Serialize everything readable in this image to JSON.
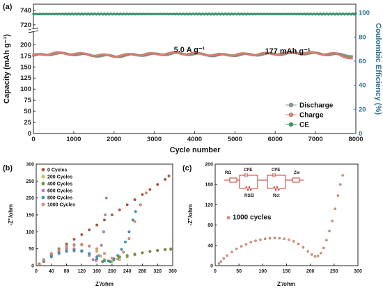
{
  "chart_data": [
    {
      "id": "a",
      "panel_label": "(a)",
      "type": "scatter",
      "xlabel": "Cycle number",
      "ylabel": "Capacity (mAh g⁻¹)",
      "y2label": "Coulombic Efficiency (%)",
      "xlim": [
        0,
        8000
      ],
      "xticks": [
        0,
        1000,
        2000,
        3000,
        4000,
        5000,
        6000,
        7000,
        8000
      ],
      "y_lower_ticks": [
        0,
        25,
        50,
        75,
        100,
        125,
        150,
        175,
        200
      ],
      "y_upper_ticks": [
        720,
        740
      ],
      "y_break": [
        205,
        715
      ],
      "y2lim": [
        0,
        105
      ],
      "y2ticks": [
        0,
        20,
        40,
        60,
        80,
        100
      ],
      "annotations": [
        "5.0 A g⁻¹",
        "177 mAh g⁻¹"
      ],
      "legend_position": "lower-right",
      "series": [
        {
          "name": "Discharge",
          "color": "#8a9a8a",
          "axis": "left",
          "x": [
            0,
            500,
            1000,
            1500,
            2000,
            2500,
            3000,
            3500,
            4000,
            4500,
            5000,
            5500,
            6000,
            6500,
            7000,
            7500,
            7900
          ],
          "y": [
            175,
            180,
            179,
            176,
            174,
            177,
            178,
            180,
            179,
            176,
            177,
            178,
            179,
            181,
            180,
            178,
            176
          ]
        },
        {
          "name": "Charge",
          "color": "#e8826e",
          "axis": "left",
          "x": [
            0,
            500,
            1000,
            1500,
            2000,
            2500,
            3000,
            3500,
            4000,
            4500,
            5000,
            5500,
            6000,
            6500,
            7000,
            7500,
            7900
          ],
          "y": [
            176,
            181,
            180,
            177,
            175,
            178,
            179,
            181,
            180,
            177,
            178,
            179,
            180,
            182,
            181,
            179,
            170
          ]
        },
        {
          "name": "CE",
          "color": "#2e9a6a",
          "axis": "right",
          "x": [
            0,
            1000,
            2000,
            3000,
            4000,
            5000,
            6000,
            7000,
            8000
          ],
          "y": [
            100,
            100,
            100,
            100,
            100,
            100,
            100,
            100,
            100
          ]
        }
      ]
    },
    {
      "id": "b",
      "panel_label": "(b)",
      "type": "scatter",
      "xlabel": "Z'/ohm",
      "ylabel": "-Z''/ohm",
      "xlim": [
        0,
        360
      ],
      "ylim": [
        0,
        300
      ],
      "xticks": [
        0,
        40,
        80,
        120,
        160,
        200,
        240,
        280,
        320,
        360
      ],
      "yticks": [
        0,
        50,
        100,
        150,
        200,
        250,
        300
      ],
      "legend_position": "upper-left",
      "series": [
        {
          "name": "0 Cycles",
          "color": "#c0522e",
          "x": [
            8,
            20,
            40,
            60,
            80,
            100,
            120,
            140,
            160,
            180,
            200,
            220,
            240,
            260,
            280,
            300,
            320,
            340,
            350
          ],
          "y": [
            5,
            15,
            35,
            50,
            64,
            78,
            92,
            106,
            120,
            135,
            150,
            165,
            180,
            195,
            210,
            225,
            240,
            255,
            265
          ]
        },
        {
          "name": "200 Cycles",
          "color": "#d9c84a",
          "x": [
            8,
            20,
            40,
            60,
            80,
            100,
            120,
            140,
            160,
            170,
            180,
            200,
            220,
            240,
            260,
            280,
            300,
            320,
            340,
            355
          ],
          "y": [
            4,
            18,
            35,
            48,
            56,
            62,
            63,
            58,
            42,
            28,
            18,
            12,
            18,
            26,
            32,
            38,
            42,
            45,
            48,
            50
          ]
        },
        {
          "name": "400 Cycles",
          "color": "#6c9a3a",
          "x": [
            8,
            20,
            40,
            60,
            80,
            100,
            120,
            140,
            160,
            175,
            190,
            205,
            220,
            240,
            260,
            280,
            300,
            320,
            340,
            355
          ],
          "y": [
            4,
            14,
            28,
            40,
            46,
            48,
            44,
            34,
            20,
            12,
            14,
            20,
            26,
            30,
            34,
            38,
            42,
            45,
            47,
            48
          ]
        },
        {
          "name": "600 Cycles",
          "color": "#c87ad8",
          "x": [
            8,
            20,
            40,
            60,
            80,
            100,
            120,
            140,
            150,
            158,
            165,
            172,
            178,
            182,
            185
          ],
          "y": [
            4,
            14,
            30,
            42,
            50,
            50,
            44,
            30,
            18,
            15,
            30,
            60,
            100,
            150,
            200
          ]
        },
        {
          "name": "800 Cycles",
          "color": "#2aa0c8",
          "x": [
            8,
            20,
            40,
            60,
            80,
            100,
            120,
            140,
            160,
            180,
            195,
            205,
            215,
            225,
            235,
            245,
            255,
            262
          ],
          "y": [
            4,
            12,
            26,
            36,
            42,
            44,
            42,
            36,
            26,
            14,
            12,
            18,
            30,
            48,
            70,
            100,
            135,
            160
          ]
        },
        {
          "name": "1000 Cycles",
          "color": "#f09070",
          "x": [
            8,
            20,
            40,
            60,
            80,
            100,
            120,
            140,
            160,
            180,
            200,
            215,
            230,
            245,
            260,
            275,
            290
          ],
          "y": [
            4,
            16,
            34,
            46,
            55,
            60,
            61,
            58,
            50,
            36,
            22,
            20,
            40,
            80,
            130,
            180,
            215
          ]
        }
      ]
    },
    {
      "id": "c",
      "panel_label": "(c)",
      "type": "scatter",
      "xlabel": "Z'/ohm",
      "ylabel": "-Z''/ohm",
      "xlim": [
        0,
        300
      ],
      "ylim": [
        0,
        200
      ],
      "xticks": [
        0,
        50,
        100,
        150,
        200,
        250,
        300
      ],
      "yticks": [
        0,
        40,
        80,
        120,
        160,
        200
      ],
      "legend_position": "middle-left",
      "circuit": {
        "labels": [
          "RΩ",
          "CPE",
          "RSEI",
          "CPE",
          "Rct",
          "Zw"
        ]
      },
      "series": [
        {
          "name": "1000 cycles",
          "color": "#f09070",
          "x": [
            8,
            12,
            18,
            25,
            35,
            45,
            55,
            65,
            75,
            85,
            95,
            105,
            115,
            125,
            135,
            145,
            155,
            165,
            175,
            185,
            195,
            203,
            210,
            216,
            222,
            228,
            234,
            240,
            246,
            252,
            258,
            263,
            268
          ],
          "y": [
            4,
            8,
            14,
            20,
            27,
            33,
            38,
            42,
            46,
            49,
            51,
            53,
            54,
            54.5,
            54,
            53,
            51,
            48,
            43,
            36,
            28,
            22,
            18,
            19,
            25,
            35,
            50,
            68,
            88,
            112,
            138,
            160,
            178
          ]
        }
      ]
    }
  ]
}
